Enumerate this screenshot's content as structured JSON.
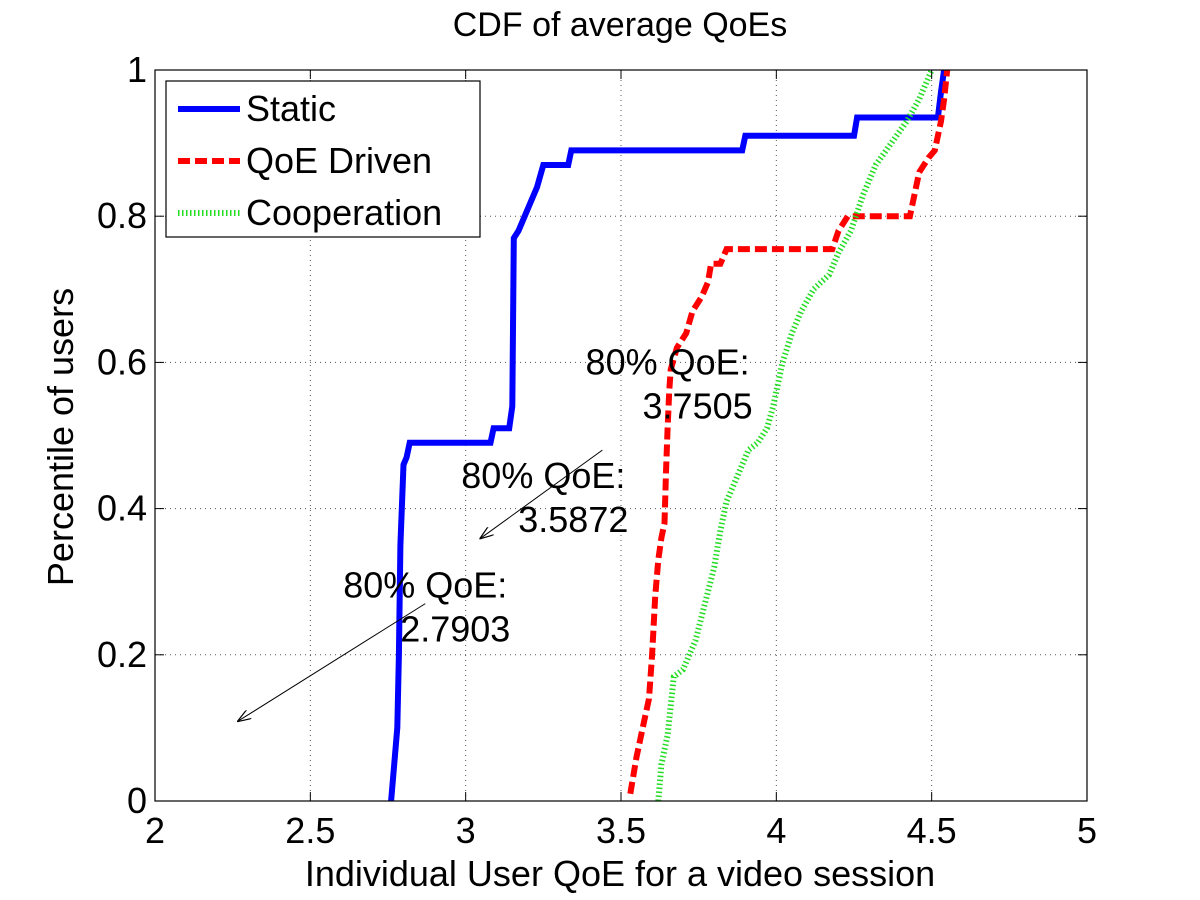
{
  "chart_data": {
    "type": "line",
    "title": "CDF of average QoEs",
    "xlabel": "Individual User QoE for a video session",
    "ylabel": "Percentile of users",
    "xlim": [
      2,
      5
    ],
    "ylim": [
      0,
      1
    ],
    "xticks": [
      2,
      2.5,
      3,
      3.5,
      4,
      4.5,
      5
    ],
    "xtick_labels": [
      "2",
      "2.5",
      "3",
      "3.5",
      "4",
      "4.5",
      "5"
    ],
    "yticks": [
      0,
      0.2,
      0.4,
      0.6,
      0.8,
      1
    ],
    "ytick_labels": [
      "0",
      "0.2",
      "0.4",
      "0.6",
      "0.8",
      "1"
    ],
    "grid": true,
    "legend_position": "top-left",
    "series": [
      {
        "name": "Static",
        "color": "#0000ff",
        "style": "solid",
        "points": [
          [
            2.76,
            0
          ],
          [
            2.77,
            0.05
          ],
          [
            2.78,
            0.1
          ],
          [
            2.785,
            0.2
          ],
          [
            2.79,
            0.35
          ],
          [
            2.8,
            0.46
          ],
          [
            2.81,
            0.47
          ],
          [
            2.82,
            0.49
          ],
          [
            3.08,
            0.49
          ],
          [
            3.09,
            0.51
          ],
          [
            3.14,
            0.51
          ],
          [
            3.15,
            0.54
          ],
          [
            3.155,
            0.77
          ],
          [
            3.17,
            0.78
          ],
          [
            3.19,
            0.8
          ],
          [
            3.21,
            0.82
          ],
          [
            3.23,
            0.84
          ],
          [
            3.25,
            0.87
          ],
          [
            3.33,
            0.87
          ],
          [
            3.34,
            0.89
          ],
          [
            3.89,
            0.89
          ],
          [
            3.9,
            0.91
          ],
          [
            4.25,
            0.91
          ],
          [
            4.26,
            0.935
          ],
          [
            4.52,
            0.935
          ],
          [
            4.53,
            0.97
          ],
          [
            4.54,
            1.0
          ]
        ]
      },
      {
        "name": "QoE Driven",
        "color": "#ff0000",
        "style": "dashed",
        "points": [
          [
            3.53,
            0.01
          ],
          [
            3.55,
            0.06
          ],
          [
            3.57,
            0.1
          ],
          [
            3.59,
            0.14
          ],
          [
            3.6,
            0.2
          ],
          [
            3.61,
            0.28
          ],
          [
            3.62,
            0.33
          ],
          [
            3.63,
            0.36
          ],
          [
            3.64,
            0.38
          ],
          [
            3.645,
            0.45
          ],
          [
            3.65,
            0.51
          ],
          [
            3.655,
            0.56
          ],
          [
            3.66,
            0.59
          ],
          [
            3.68,
            0.62
          ],
          [
            3.71,
            0.64
          ],
          [
            3.73,
            0.67
          ],
          [
            3.76,
            0.69
          ],
          [
            3.78,
            0.71
          ],
          [
            3.79,
            0.735
          ],
          [
            3.82,
            0.735
          ],
          [
            3.84,
            0.755
          ],
          [
            4.18,
            0.755
          ],
          [
            4.2,
            0.78
          ],
          [
            4.23,
            0.8
          ],
          [
            4.43,
            0.8
          ],
          [
            4.46,
            0.86
          ],
          [
            4.49,
            0.88
          ],
          [
            4.51,
            0.89
          ],
          [
            4.52,
            0.91
          ],
          [
            4.53,
            0.93
          ],
          [
            4.54,
            0.96
          ],
          [
            4.55,
            1.0
          ]
        ]
      },
      {
        "name": "Cooperation",
        "color": "#22dd22",
        "style": "dotted",
        "points": [
          [
            3.62,
            0.0
          ],
          [
            3.63,
            0.05
          ],
          [
            3.65,
            0.09
          ],
          [
            3.66,
            0.13
          ],
          [
            3.67,
            0.17
          ],
          [
            3.7,
            0.18
          ],
          [
            3.74,
            0.22
          ],
          [
            3.77,
            0.27
          ],
          [
            3.8,
            0.32
          ],
          [
            3.82,
            0.37
          ],
          [
            3.84,
            0.41
          ],
          [
            3.88,
            0.45
          ],
          [
            3.91,
            0.48
          ],
          [
            3.94,
            0.49
          ],
          [
            3.97,
            0.51
          ],
          [
            3.99,
            0.54
          ],
          [
            4.02,
            0.6
          ],
          [
            4.05,
            0.64
          ],
          [
            4.08,
            0.67
          ],
          [
            4.12,
            0.7
          ],
          [
            4.17,
            0.72
          ],
          [
            4.2,
            0.75
          ],
          [
            4.24,
            0.78
          ],
          [
            4.28,
            0.83
          ],
          [
            4.32,
            0.87
          ],
          [
            4.37,
            0.9
          ],
          [
            4.42,
            0.93
          ],
          [
            4.46,
            0.96
          ],
          [
            4.49,
            0.99
          ],
          [
            4.5,
            1.0
          ]
        ]
      }
    ],
    "annotations": [
      {
        "text_line1": "80% QoE:",
        "text_line2": "2.7903",
        "x": 2.87,
        "y": 0.27,
        "arrow_from": [
          2.87,
          0.27
        ],
        "arrow_to": [
          2.27,
          0.11
        ]
      },
      {
        "text_line1": "80% QoE:",
        "text_line2": "3.5872",
        "x": 3.25,
        "y": 0.42,
        "arrow_from": [
          3.44,
          0.48
        ],
        "arrow_to": [
          3.05,
          0.36
        ]
      },
      {
        "text_line1": "80% QoE:",
        "text_line2": "3.7505",
        "x": 3.65,
        "y": 0.575,
        "arrow_from": null,
        "arrow_to": null
      }
    ]
  }
}
